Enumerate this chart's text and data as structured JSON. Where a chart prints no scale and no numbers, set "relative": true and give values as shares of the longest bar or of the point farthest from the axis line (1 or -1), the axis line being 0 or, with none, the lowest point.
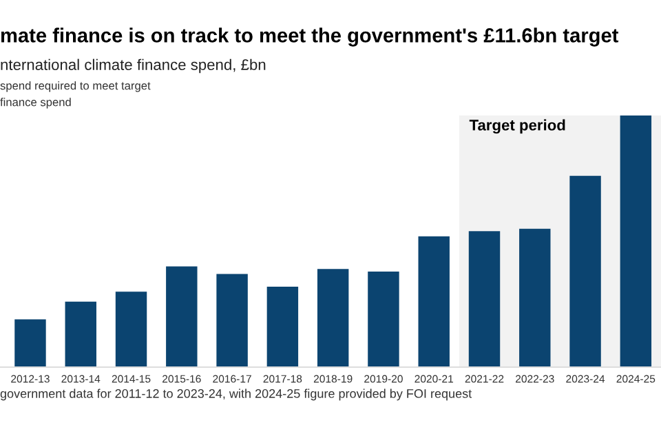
{
  "chart_data": {
    "type": "bar",
    "title": "mate finance is on track to meet the government's £11.6bn target",
    "subtitle": "nternational climate finance spend, £bn",
    "categories": [
      "2012-13",
      "2013-14",
      "2014-15",
      "2015-16",
      "2016-17",
      "2017-18",
      "2018-19",
      "2019-20",
      "2020-21",
      "2021-22",
      "2022-23",
      "2023-24",
      "2024-25"
    ],
    "values": [
      0.19,
      0.26,
      0.3,
      0.4,
      0.37,
      0.32,
      0.39,
      0.38,
      0.52,
      0.54,
      0.55,
      0.76,
      1
    ],
    "color": "#0b4470",
    "relative": true,
    "bands": [
      {
        "axis": "x",
        "from": "2021-22",
        "to": "2024-25",
        "label": "Target period",
        "color": "#f2f2f2"
      }
    ],
    "annotations": [
      "spend required to meet target",
      "finance spend",
      "government data for 2011-12 to 2023-24, with 2024-25 figure provided by FOI request"
    ],
    "tick_labels": "x",
    "grid": false,
    "legend": false
  }
}
